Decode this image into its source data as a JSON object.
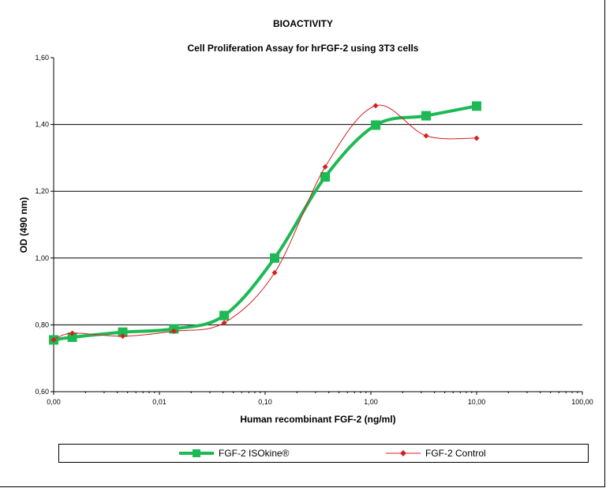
{
  "chart_data": {
    "type": "line",
    "title": "BIOACTIVITY",
    "subtitle": "Cell Proliferation Assay for hrFGF-2 using 3T3 cells",
    "xlabel": "Human recombinant FGF-2 (ng/ml)",
    "ylabel": "OD (490 nm)",
    "x_scale": "log",
    "xlim": [
      0.001,
      100
    ],
    "ylim": [
      0.6,
      1.6
    ],
    "x_tick_values": [
      0.001,
      0.01,
      0.1,
      1,
      10,
      100
    ],
    "x_tick_labels": [
      "0,00",
      "0,01",
      "0,10",
      "1,00",
      "10,00",
      "100,00"
    ],
    "y_tick_values": [
      0.6,
      0.8,
      1.0,
      1.2,
      1.4,
      1.6
    ],
    "y_tick_labels": [
      "0,60",
      "0,80",
      "1,00",
      "1,20",
      "1,40",
      "1,60"
    ],
    "grid": "horizontal",
    "legend_position": "bottom",
    "series": [
      {
        "name": "FGF-2 ISOkine®",
        "color": "#1db954",
        "marker": "square",
        "x": [
          0.001,
          0.0015,
          0.0045,
          0.0137,
          0.041,
          0.123,
          0.37,
          1.11,
          3.33,
          10.0
        ],
        "y": [
          0.755,
          0.763,
          0.778,
          0.788,
          0.828,
          1.0,
          1.243,
          1.398,
          1.426,
          1.455
        ]
      },
      {
        "name": "FGF-2 Control",
        "color": "#d42020",
        "marker": "diamond",
        "x": [
          0.001,
          0.0015,
          0.0045,
          0.0137,
          0.041,
          0.123,
          0.37,
          1.11,
          3.33,
          10.0
        ],
        "y": [
          0.755,
          0.775,
          0.766,
          0.781,
          0.806,
          0.956,
          1.273,
          1.456,
          1.366,
          1.359
        ]
      }
    ]
  }
}
